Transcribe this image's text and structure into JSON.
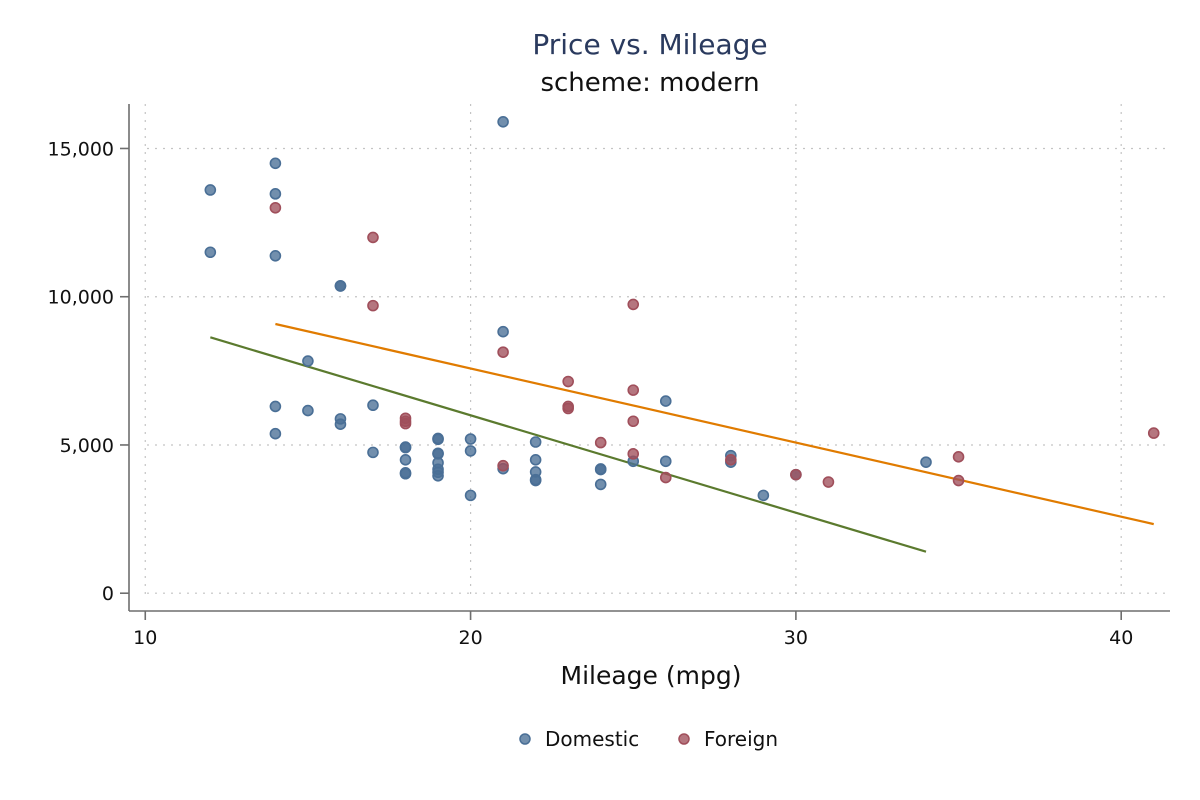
{
  "chart_data": {
    "type": "scatter",
    "title": "Price vs. Mileage",
    "subtitle": "scheme: modern",
    "xlabel": "Mileage (mpg)",
    "ylabel": "",
    "xlim": [
      9.5,
      41.5
    ],
    "ylim": [
      -600,
      16500
    ],
    "x_ticks": [
      10,
      20,
      30,
      40
    ],
    "x_tick_labels": [
      "10",
      "20",
      "30",
      "40"
    ],
    "y_ticks": [
      0,
      5000,
      10000,
      15000
    ],
    "y_tick_labels": [
      "0",
      "5,000",
      "10,000",
      "15,000"
    ],
    "grid": true,
    "legend_position": "bottom",
    "series": [
      {
        "name": "Domestic",
        "color": "#4a6f96",
        "points": [
          [
            12,
            13600
          ],
          [
            12,
            11500
          ],
          [
            14,
            14500
          ],
          [
            14,
            13470
          ],
          [
            14,
            11380
          ],
          [
            14,
            6300
          ],
          [
            14,
            5380
          ],
          [
            15,
            7830
          ],
          [
            15,
            6160
          ],
          [
            16,
            10370
          ],
          [
            16,
            10360
          ],
          [
            16,
            5880
          ],
          [
            16,
            5700
          ],
          [
            17,
            6340
          ],
          [
            17,
            4750
          ],
          [
            18,
            4930
          ],
          [
            18,
            4910
          ],
          [
            18,
            4500
          ],
          [
            18,
            4060
          ],
          [
            18,
            4030
          ],
          [
            19,
            5220
          ],
          [
            19,
            5190
          ],
          [
            19,
            4720
          ],
          [
            19,
            4700
          ],
          [
            19,
            4400
          ],
          [
            19,
            4180
          ],
          [
            19,
            4080
          ],
          [
            19,
            3960
          ],
          [
            20,
            5200
          ],
          [
            20,
            4800
          ],
          [
            20,
            3300
          ],
          [
            21,
            15900
          ],
          [
            21,
            8820
          ],
          [
            21,
            4200
          ],
          [
            22,
            5100
          ],
          [
            22,
            4500
          ],
          [
            22,
            4090
          ],
          [
            22,
            3830
          ],
          [
            22,
            3800
          ],
          [
            24,
            4190
          ],
          [
            24,
            4170
          ],
          [
            24,
            3670
          ],
          [
            25,
            4450
          ],
          [
            26,
            6480
          ],
          [
            26,
            4450
          ],
          [
            28,
            4640
          ],
          [
            28,
            4420
          ],
          [
            29,
            3300
          ],
          [
            30,
            4000
          ],
          [
            34,
            4420
          ]
        ]
      },
      {
        "name": "Foreign",
        "color": "#a04f5b",
        "points": [
          [
            14,
            13000
          ],
          [
            17,
            12000
          ],
          [
            17,
            9700
          ],
          [
            18,
            5900
          ],
          [
            18,
            5800
          ],
          [
            18,
            5720
          ],
          [
            21,
            8130
          ],
          [
            21,
            4300
          ],
          [
            23,
            7140
          ],
          [
            23,
            6300
          ],
          [
            23,
            6230
          ],
          [
            24,
            5080
          ],
          [
            25,
            9740
          ],
          [
            25,
            6850
          ],
          [
            25,
            5800
          ],
          [
            25,
            4700
          ],
          [
            26,
            3900
          ],
          [
            28,
            4500
          ],
          [
            30,
            4000
          ],
          [
            31,
            3750
          ],
          [
            35,
            4600
          ],
          [
            35,
            3800
          ],
          [
            41,
            5400
          ]
        ]
      }
    ],
    "fit_lines": [
      {
        "color": "#5b7a2e",
        "x": [
          12,
          34
        ],
        "y": [
          8630,
          1400
        ]
      },
      {
        "color": "#e07b00",
        "x": [
          14,
          41
        ],
        "y": [
          9080,
          2330
        ]
      }
    ]
  }
}
